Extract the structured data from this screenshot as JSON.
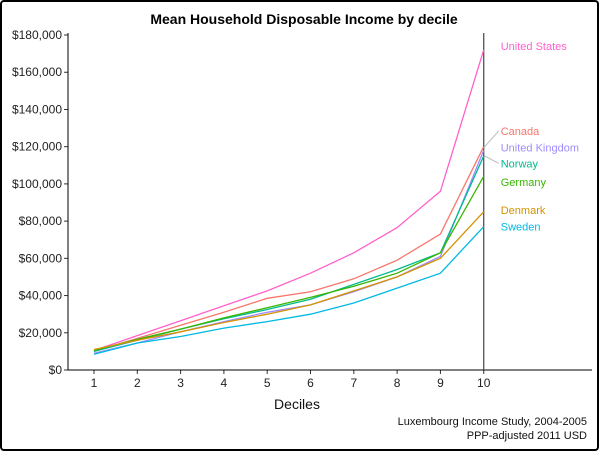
{
  "chart_data": {
    "type": "line",
    "title": "Mean Household Disposable Income by decile",
    "xlabel": "Deciles",
    "ylabel": "",
    "x": [
      1,
      2,
      3,
      4,
      5,
      6,
      7,
      8,
      9,
      10
    ],
    "x_ticks": [
      "1",
      "2",
      "3",
      "4",
      "5",
      "6",
      "7",
      "8",
      "9",
      "10"
    ],
    "ylim": [
      0,
      180000
    ],
    "y_ticks": [
      "$0",
      "$20,000",
      "$40,000",
      "$60,000",
      "$80,000",
      "$100,000",
      "$120,000",
      "$140,000",
      "$160,000",
      "$180,000"
    ],
    "y_tick_values": [
      0,
      20000,
      40000,
      60000,
      80000,
      100000,
      120000,
      140000,
      160000,
      180000
    ],
    "grid": false,
    "vertical_reference_line_x": 10,
    "series": [
      {
        "name": "United States",
        "color": "#FF61CC",
        "values": [
          10500,
          18500,
          26500,
          34500,
          42500,
          52000,
          63000,
          76500,
          96000,
          172000
        ],
        "label_value": 174000
      },
      {
        "name": "Canada",
        "color": "#F8766D",
        "values": [
          10000,
          17000,
          24000,
          31000,
          38500,
          42000,
          49000,
          59000,
          73000,
          120000
        ],
        "label_value": 128500
      },
      {
        "name": "United Kingdom",
        "color": "#9E8CFF",
        "values": [
          9000,
          14500,
          20500,
          26000,
          31000,
          35000,
          42000,
          50000,
          61000,
          118000
        ],
        "label_value": 119500
      },
      {
        "name": "Norway",
        "color": "#00BA8E",
        "values": [
          10000,
          16000,
          22000,
          27500,
          32500,
          38000,
          46000,
          54000,
          63000,
          115000
        ],
        "label_value": 111000
      },
      {
        "name": "Germany",
        "color": "#39B600",
        "values": [
          10500,
          16500,
          22000,
          28000,
          33500,
          39000,
          45000,
          52000,
          63000,
          104000
        ],
        "label_value": 101000
      },
      {
        "name": "Denmark",
        "color": "#D39200",
        "values": [
          11000,
          16000,
          20500,
          25500,
          30000,
          35000,
          42500,
          50000,
          60000,
          85000
        ],
        "label_value": 86000
      },
      {
        "name": "Sweden",
        "color": "#00B9E3",
        "values": [
          8500,
          14500,
          18000,
          22500,
          26000,
          30000,
          36000,
          44000,
          52000,
          77000
        ],
        "label_value": 77000
      }
    ],
    "caption": [
      "Luxembourg Income Study, 2004-2005",
      "PPP-adjusted 2011 USD"
    ]
  }
}
